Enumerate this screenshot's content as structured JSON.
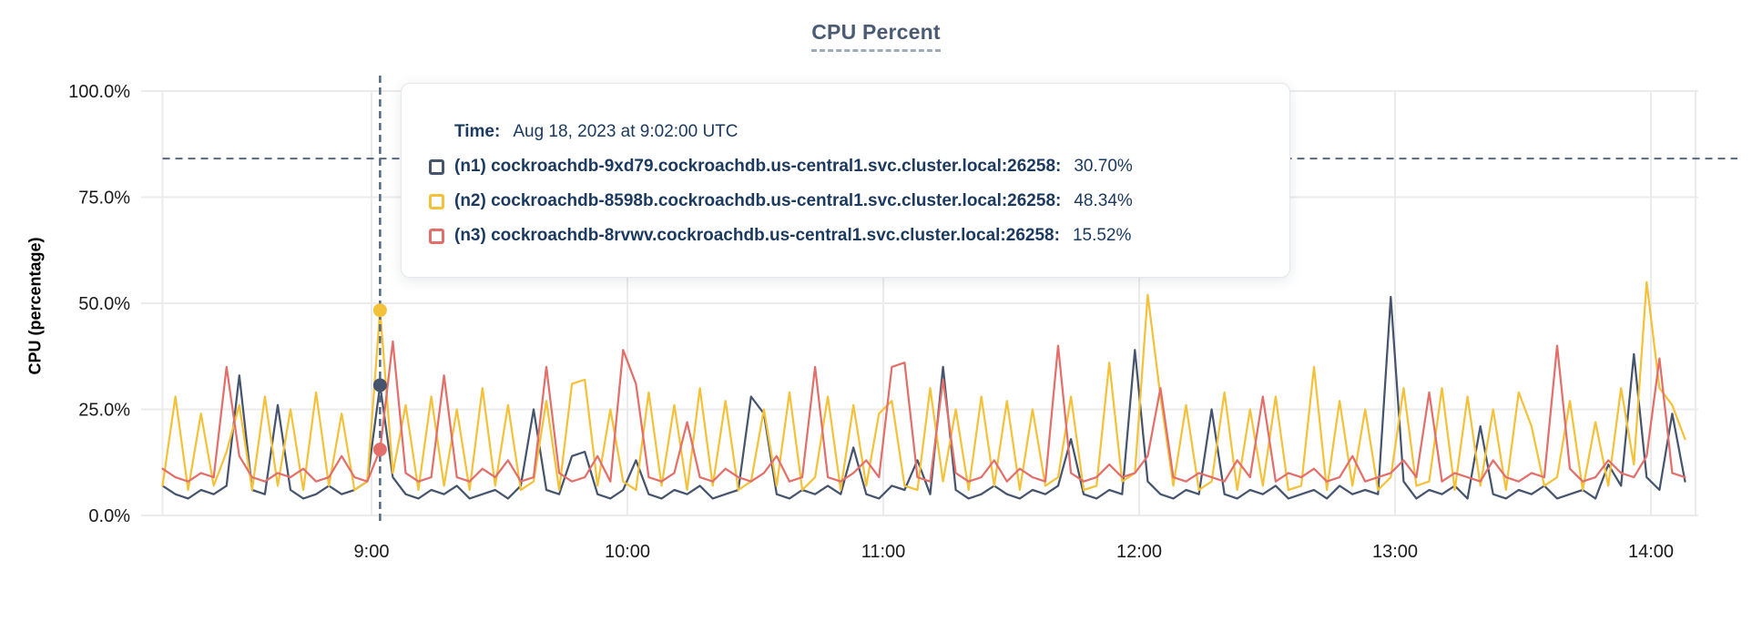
{
  "title": "CPU Percent",
  "y_axis": {
    "label": "CPU (percentage)",
    "ticks": [
      "100.0%",
      "75.0%",
      "50.0%",
      "25.0%",
      "0.0%"
    ],
    "tick_values": [
      100,
      75,
      50,
      25,
      0
    ]
  },
  "x_axis": {
    "ticks": [
      "9:00",
      "10:00",
      "11:00",
      "12:00",
      "13:00",
      "14:00"
    ],
    "tick_hours": [
      9,
      10,
      11,
      12,
      13,
      14
    ]
  },
  "tooltip": {
    "time_label": "Time:",
    "time_value": "Aug 18, 2023 at 9:02:00 UTC",
    "rows": [
      {
        "name": "(n1) cockroachdb-9xd79.cockroachdb.us-central1.svc.cluster.local:26258:",
        "value": "30.70%",
        "color": "#46556d"
      },
      {
        "name": "(n2) cockroachdb-8598b.cockroachdb.us-central1.svc.cluster.local:26258:",
        "value": "48.34%",
        "color": "#f4c23a"
      },
      {
        "name": "(n3) cockroachdb-8rvwv.cockroachdb.us-central1.svc.cluster.local:26258:",
        "value": "15.52%",
        "color": "#e26f6a"
      }
    ]
  },
  "colors": {
    "series_n1": "#46556d",
    "series_n2": "#f4c23a",
    "series_n3": "#e26f6a",
    "grid": "#ebebeb",
    "crosshair": "#53687e",
    "axis_text": "#1b1b1b",
    "title_text": "#4b5b74",
    "tooltip_text": "#1c3a60"
  },
  "chart_data": {
    "type": "line",
    "title": "CPU Percent",
    "ylabel": "CPU (percentage)",
    "ylim": [
      0,
      100
    ],
    "y_tick_values": [
      100,
      75,
      50,
      25,
      0
    ],
    "x_tick_labels": [
      "9:00",
      "10:00",
      "11:00",
      "12:00",
      "13:00",
      "14:00"
    ],
    "x_tick_hours": [
      9,
      10,
      11,
      12,
      13,
      14
    ],
    "x_start": "8:11",
    "x_end": "14:08",
    "x_step_minutes": 3,
    "grid": true,
    "legend_position": "tooltip",
    "hover": {
      "time": "9:02",
      "cursor_y_percent": 84.1,
      "values": {
        "n1": 30.7,
        "n2": 48.34,
        "n3": 15.52
      }
    },
    "series": [
      {
        "name": "(n1) cockroachdb-9xd79.cockroachdb.us-central1.svc.cluster.local:26258",
        "color": "#46556d",
        "values": [
          7,
          5,
          4,
          6,
          5,
          7,
          33,
          6,
          5,
          26,
          6,
          4,
          5,
          7,
          5,
          6,
          8,
          30.7,
          9,
          5,
          4,
          6,
          5,
          7,
          4,
          5,
          6,
          4,
          7,
          25,
          6,
          5,
          14,
          15,
          5,
          4,
          6,
          13,
          5,
          4,
          6,
          5,
          7,
          4,
          5,
          6,
          28,
          24,
          5,
          4,
          6,
          5,
          7,
          5,
          16,
          5,
          4,
          7,
          6,
          13,
          5,
          35,
          6,
          4,
          5,
          7,
          5,
          4,
          6,
          5,
          7,
          18,
          5,
          4,
          6,
          5,
          39,
          8,
          5,
          4,
          6,
          5,
          25,
          5,
          4,
          6,
          5,
          7,
          4,
          5,
          6,
          4,
          7,
          5,
          6,
          5,
          51.5,
          8,
          4,
          6,
          5,
          7,
          4,
          21,
          5,
          4,
          6,
          5,
          7,
          4,
          5,
          6,
          4,
          12,
          7,
          38,
          9,
          6,
          24,
          8
        ]
      },
      {
        "name": "(n2) cockroachdb-8598b.cockroachdb.us-central1.svc.cluster.local:26258",
        "color": "#f4c23a",
        "values": [
          7,
          28,
          6,
          24,
          7,
          15,
          26,
          6,
          28,
          7,
          25,
          6,
          29,
          7,
          24,
          6,
          8,
          48.34,
          10,
          26,
          6,
          28,
          7,
          25,
          6,
          30,
          7,
          26,
          6,
          8,
          27,
          6,
          31,
          32,
          7,
          25,
          8,
          6,
          29,
          7,
          26,
          6,
          30,
          7,
          27,
          6,
          8,
          25,
          7,
          29,
          6,
          9,
          28,
          6,
          26,
          7,
          24,
          27,
          7,
          6,
          30,
          8,
          25,
          6,
          28,
          7,
          27,
          6,
          25,
          7,
          9,
          28,
          6,
          7,
          36,
          8,
          10,
          52,
          28,
          7,
          26,
          6,
          8,
          29,
          6,
          25,
          7,
          28,
          6,
          7,
          35,
          6,
          27,
          7,
          25,
          6,
          9,
          30,
          7,
          8,
          30,
          6,
          28,
          7,
          25,
          6,
          29,
          21,
          7,
          9,
          27,
          6,
          22,
          7,
          30,
          12,
          55,
          30,
          26,
          18
        ]
      },
      {
        "name": "(n3) cockroachdb-8rvwv.cockroachdb.us-central1.svc.cluster.local:26258",
        "color": "#e26f6a",
        "values": [
          11,
          9,
          8,
          10,
          9,
          35,
          14,
          9,
          8,
          10,
          9,
          11,
          8,
          9,
          14,
          9,
          8,
          15.52,
          41,
          10,
          8,
          9,
          33,
          9,
          8,
          11,
          9,
          13,
          8,
          9,
          35,
          10,
          8,
          9,
          14,
          8,
          39,
          31,
          9,
          8,
          10,
          22,
          9,
          8,
          11,
          9,
          8,
          10,
          14,
          8,
          9,
          35,
          9,
          8,
          10,
          13,
          9,
          35,
          36,
          9,
          8,
          32,
          10,
          8,
          9,
          13,
          8,
          11,
          9,
          8,
          40,
          10,
          8,
          9,
          12,
          9,
          10,
          14,
          30,
          9,
          8,
          10,
          9,
          8,
          13,
          9,
          28,
          8,
          10,
          9,
          11,
          8,
          9,
          14,
          8,
          9,
          10,
          13,
          9,
          29,
          8,
          10,
          9,
          8,
          13,
          9,
          8,
          10,
          9,
          40,
          11,
          8,
          9,
          13,
          10,
          9,
          14,
          37,
          10,
          9
        ]
      }
    ]
  }
}
